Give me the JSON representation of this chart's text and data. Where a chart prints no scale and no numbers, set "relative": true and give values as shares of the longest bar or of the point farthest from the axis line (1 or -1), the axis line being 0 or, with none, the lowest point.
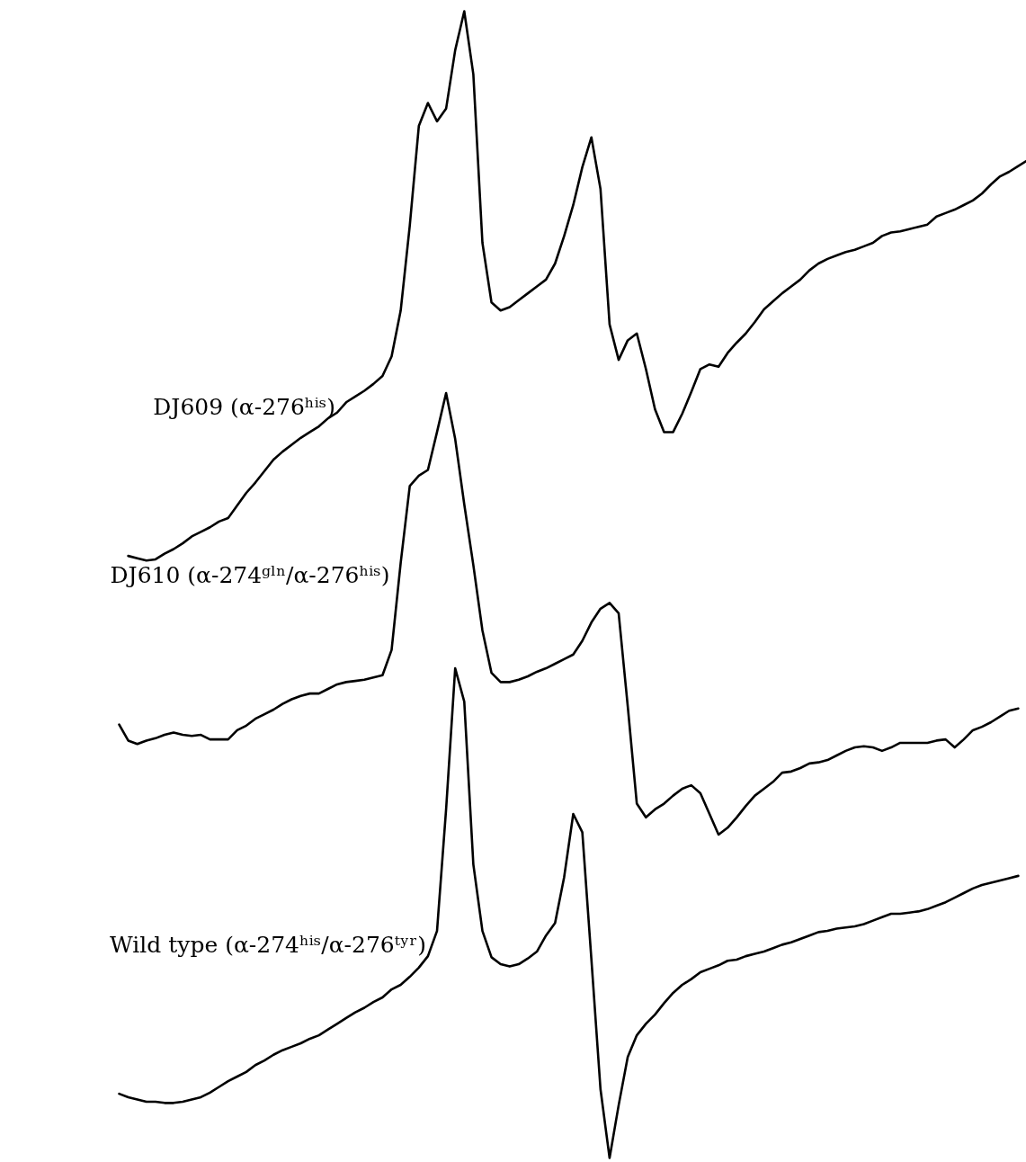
{
  "chart_data": {
    "type": "line",
    "relative": true,
    "categories": [
      null,
      null,
      null,
      null,
      null,
      null,
      null,
      null,
      null,
      null,
      null,
      null,
      null,
      null,
      null,
      null,
      null,
      null,
      null,
      null,
      null,
      null,
      null,
      null,
      null,
      null,
      null,
      null,
      null,
      null,
      null,
      null,
      null,
      null,
      null,
      null,
      null,
      null,
      null,
      null,
      null,
      null,
      null,
      null,
      null,
      null,
      null,
      null,
      null,
      null,
      null,
      null,
      null,
      null,
      null,
      null,
      null,
      null,
      null,
      null,
      null,
      null,
      null,
      null,
      null,
      null,
      null,
      null,
      null,
      null,
      null,
      null,
      null,
      null,
      null,
      null,
      null,
      null,
      null,
      null,
      null,
      null,
      null,
      null,
      null,
      null,
      null,
      null,
      null,
      null,
      null,
      null,
      null,
      null,
      null,
      null,
      null,
      null,
      null,
      null,
      null
    ],
    "series": [
      {
        "name": "DJ609 (α-276ʰⁱˢ)",
        "color": "#000000",
        "values": [
          null,
          0.525,
          0.523,
          0.521,
          0.522,
          0.527,
          0.531,
          0.536,
          0.542,
          0.546,
          0.55,
          0.555,
          0.558,
          0.569,
          0.58,
          0.589,
          0.599,
          0.609,
          0.616,
          0.622,
          0.628,
          0.633,
          0.638,
          0.645,
          0.65,
          0.659,
          0.664,
          0.669,
          0.675,
          0.682,
          0.699,
          0.739,
          0.813,
          0.9,
          0.92,
          0.904,
          0.915,
          0.966,
          1.0,
          0.945,
          0.798,
          0.746,
          0.739,
          0.742,
          0.748,
          0.754,
          0.76,
          0.766,
          0.78,
          0.804,
          0.831,
          0.864,
          0.89,
          0.845,
          0.727,
          0.696,
          0.713,
          0.719,
          0.688,
          0.653,
          0.633,
          0.633,
          0.649,
          0.668,
          0.688,
          0.692,
          0.69,
          0.702,
          0.711,
          0.719,
          0.729,
          0.74,
          0.747,
          0.754,
          0.76,
          0.766,
          0.774,
          0.78,
          0.784,
          0.787,
          0.79,
          0.792,
          0.795,
          0.798,
          0.804,
          0.807,
          0.808,
          0.81,
          0.812,
          0.814,
          0.821,
          0.824,
          0.827,
          0.831,
          0.835,
          0.841,
          0.849,
          0.856,
          0.86,
          0.865,
          0.87
        ]
      },
      {
        "name": "DJ610 (α-274ᵍˡⁿ/α-276ʰⁱˢ)",
        "color": "#000000",
        "values": [
          0.378,
          0.364,
          0.361,
          0.364,
          0.366,
          0.369,
          0.371,
          0.369,
          0.368,
          0.369,
          0.365,
          0.365,
          0.365,
          0.373,
          0.377,
          0.383,
          0.387,
          0.391,
          0.396,
          0.4,
          0.403,
          0.405,
          0.405,
          0.409,
          0.413,
          0.415,
          0.416,
          0.417,
          0.419,
          0.421,
          0.443,
          0.519,
          0.586,
          0.595,
          0.6,
          0.633,
          0.667,
          0.627,
          0.57,
          0.517,
          0.46,
          0.423,
          0.415,
          0.415,
          0.417,
          0.42,
          0.424,
          0.427,
          0.431,
          0.435,
          0.439,
          0.451,
          0.467,
          0.479,
          0.484,
          0.475,
          0.394,
          0.309,
          0.297,
          0.304,
          0.309,
          0.316,
          0.322,
          0.325,
          0.318,
          0.3,
          0.282,
          0.288,
          0.297,
          0.307,
          0.316,
          0.322,
          0.328,
          0.336,
          0.337,
          0.34,
          0.344,
          0.345,
          0.347,
          0.351,
          0.355,
          0.358,
          0.359,
          0.358,
          0.355,
          0.358,
          0.362,
          0.362,
          0.362,
          0.362,
          0.364,
          0.365,
          0.358,
          0.365,
          0.373,
          0.376,
          0.38,
          0.385,
          0.39,
          0.392,
          null
        ]
      },
      {
        "name": "Wild type (α-274ʰⁱˢ/α-276ᵗʸʳ)",
        "color": "#000000",
        "values": [
          0.056,
          0.053,
          0.051,
          0.049,
          0.049,
          0.048,
          0.048,
          0.049,
          0.051,
          0.053,
          0.057,
          0.062,
          0.067,
          0.071,
          0.075,
          0.081,
          0.085,
          0.09,
          0.094,
          0.097,
          0.1,
          0.104,
          0.107,
          0.112,
          0.117,
          0.122,
          0.127,
          0.131,
          0.136,
          0.14,
          0.147,
          0.151,
          0.158,
          0.166,
          0.176,
          0.198,
          0.304,
          0.427,
          0.398,
          0.256,
          0.198,
          0.175,
          0.169,
          0.167,
          0.169,
          0.174,
          0.18,
          0.194,
          0.205,
          0.245,
          0.3,
          0.284,
          0.173,
          0.06,
          0.0,
          0.046,
          0.088,
          0.107,
          0.117,
          0.125,
          0.135,
          0.144,
          0.151,
          0.156,
          0.162,
          0.165,
          0.168,
          0.172,
          0.173,
          0.176,
          0.178,
          0.18,
          0.183,
          0.186,
          0.188,
          0.191,
          0.194,
          0.197,
          0.198,
          0.2,
          0.201,
          0.202,
          0.204,
          0.207,
          0.21,
          0.213,
          0.213,
          0.214,
          0.215,
          0.217,
          0.22,
          0.223,
          0.227,
          0.231,
          0.235,
          0.238,
          0.24,
          0.242,
          0.244,
          0.246,
          null
        ]
      }
    ]
  }
}
